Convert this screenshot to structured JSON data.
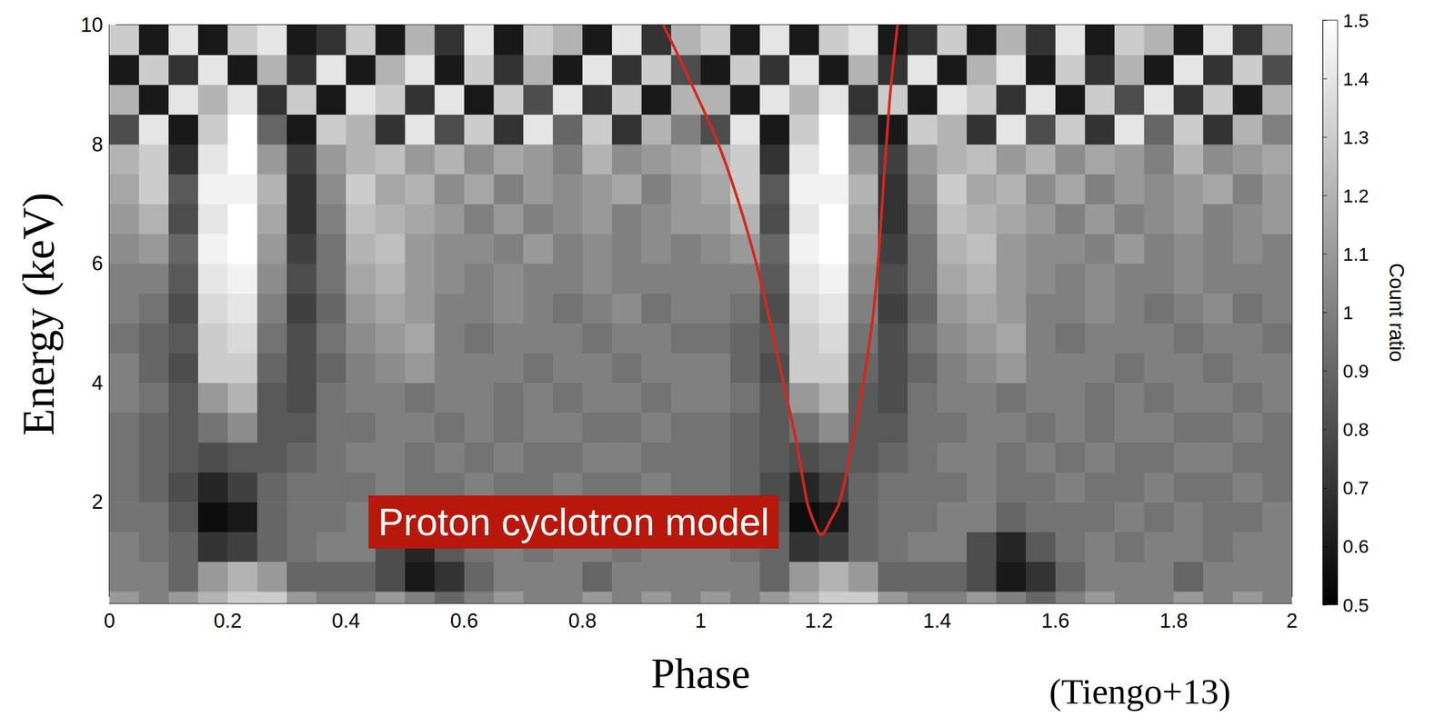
{
  "chart_data": {
    "type": "heatmap",
    "x_label": "Phase",
    "y_label": "Energy (keV)",
    "xlim": [
      0,
      2
    ],
    "xticks": [
      0,
      0.2,
      0.4,
      0.6,
      0.8,
      1,
      1.2,
      1.4,
      1.6,
      1.8,
      2
    ],
    "ylim": [
      0.3,
      10
    ],
    "yticks": [
      2,
      4,
      6,
      8,
      10
    ],
    "phase_bins": [
      0,
      0.05,
      0.1,
      0.15,
      0.2,
      0.25,
      0.3,
      0.35,
      0.4,
      0.45,
      0.5,
      0.55,
      0.6,
      0.65,
      0.7,
      0.75,
      0.8,
      0.85,
      0.9,
      0.95,
      1,
      1.05,
      1.1,
      1.15,
      1.2,
      1.25,
      1.3,
      1.35,
      1.4,
      1.45,
      1.5,
      1.55,
      1.6,
      1.65,
      1.7,
      1.75,
      1.8,
      1.85,
      1.9,
      1.95,
      2
    ],
    "energy_bins": [
      0,
      0.5,
      1,
      1.5,
      2,
      2.5,
      3,
      3.5,
      4,
      4.5,
      5,
      5.5,
      6,
      6.5,
      7,
      7.5,
      8,
      8.5,
      9,
      9.5,
      10
    ],
    "cells": [
      [
        1.1,
        1.0,
        1.1,
        1.2,
        1.3,
        1.3,
        1.1,
        1.0,
        1.0,
        1.1,
        1.0,
        0.9,
        1.0,
        1.1,
        1.0,
        1.0,
        1.1,
        1.0,
        1.1,
        1.0,
        1.1,
        1.0,
        1.1,
        1.2,
        1.3,
        1.3,
        1.1,
        1.0,
        1.0,
        1.1,
        1.0,
        0.9,
        1.0,
        1.1,
        1.0,
        1.0,
        1.1,
        1.0,
        1.1,
        1.0
      ],
      [
        1.0,
        1.0,
        0.9,
        1.1,
        1.2,
        1.1,
        0.9,
        0.9,
        0.9,
        0.8,
        0.6,
        0.7,
        0.9,
        1.0,
        1.0,
        1.0,
        0.9,
        1.0,
        1.0,
        1.0,
        1.0,
        1.0,
        0.9,
        1.1,
        1.2,
        1.1,
        0.9,
        0.9,
        0.9,
        0.8,
        0.6,
        0.7,
        0.9,
        1.0,
        1.0,
        1.0,
        0.9,
        1.0,
        1.0,
        1.0
      ],
      [
        1.0,
        0.95,
        0.9,
        0.7,
        0.75,
        0.9,
        0.95,
        1.0,
        1.0,
        0.8,
        0.65,
        0.85,
        0.95,
        1.0,
        0.95,
        1.0,
        1.0,
        0.95,
        1.0,
        1.0,
        1.0,
        0.95,
        0.9,
        0.7,
        0.75,
        0.9,
        0.95,
        1.0,
        1.0,
        0.8,
        0.65,
        0.85,
        0.95,
        1.0,
        0.95,
        1.0,
        1.0,
        0.95,
        1.0,
        1.0
      ],
      [
        0.95,
        0.95,
        0.85,
        0.55,
        0.6,
        0.9,
        0.95,
        0.95,
        1.0,
        1.0,
        0.9,
        0.95,
        0.95,
        0.95,
        1.0,
        0.95,
        1.0,
        0.95,
        0.95,
        1.0,
        0.95,
        0.95,
        0.85,
        0.55,
        0.6,
        0.9,
        0.95,
        0.95,
        1.0,
        1.0,
        0.9,
        0.95,
        0.95,
        0.95,
        1.0,
        0.95,
        1.0,
        0.95,
        0.95,
        1.0
      ],
      [
        0.95,
        0.9,
        0.8,
        0.65,
        0.75,
        0.9,
        0.95,
        0.95,
        0.95,
        1.0,
        0.95,
        0.95,
        1.0,
        0.95,
        0.95,
        1.0,
        0.95,
        0.95,
        1.0,
        0.95,
        0.95,
        0.9,
        0.8,
        0.65,
        0.75,
        0.9,
        0.95,
        0.95,
        0.95,
        1.0,
        0.95,
        0.95,
        1.0,
        0.95,
        0.95,
        1.0,
        0.95,
        0.95,
        1.0,
        0.95
      ],
      [
        0.95,
        0.9,
        0.85,
        0.8,
        0.85,
        0.85,
        0.9,
        0.95,
        1.0,
        1.0,
        0.95,
        1.0,
        0.95,
        1.0,
        0.95,
        0.95,
        1.0,
        1.0,
        0.95,
        0.95,
        0.95,
        0.9,
        0.85,
        0.8,
        0.85,
        0.85,
        0.9,
        0.95,
        1.0,
        1.0,
        0.95,
        1.0,
        0.95,
        1.0,
        0.95,
        0.95,
        1.0,
        1.0,
        0.95,
        0.95
      ],
      [
        0.95,
        0.9,
        0.85,
        0.95,
        1.05,
        0.85,
        0.85,
        0.95,
        0.95,
        1.0,
        1.0,
        0.95,
        1.0,
        0.95,
        1.0,
        1.0,
        0.95,
        0.95,
        1.0,
        0.95,
        0.95,
        0.9,
        0.85,
        0.95,
        1.05,
        0.85,
        0.85,
        0.95,
        0.95,
        1.0,
        1.0,
        0.95,
        1.0,
        0.95,
        1.0,
        1.0,
        0.95,
        0.95,
        1.0,
        0.95
      ],
      [
        1.0,
        0.95,
        0.85,
        1.1,
        1.2,
        0.85,
        0.8,
        0.95,
        1.0,
        1.0,
        0.95,
        1.0,
        1.0,
        0.95,
        1.0,
        0.95,
        1.0,
        1.0,
        0.95,
        1.0,
        1.0,
        0.95,
        0.85,
        1.1,
        1.2,
        0.85,
        0.8,
        0.95,
        1.0,
        1.0,
        0.95,
        1.0,
        1.0,
        0.95,
        1.0,
        0.95,
        1.0,
        1.0,
        0.95,
        1.0
      ],
      [
        1.0,
        0.9,
        0.8,
        1.3,
        1.3,
        0.9,
        0.8,
        0.9,
        1.0,
        1.05,
        1.1,
        1.0,
        1.0,
        1.0,
        0.95,
        1.0,
        1.0,
        0.95,
        1.0,
        1.0,
        1.0,
        0.9,
        0.8,
        1.3,
        1.3,
        0.9,
        0.8,
        0.9,
        1.0,
        1.05,
        1.1,
        1.0,
        1.0,
        1.0,
        0.95,
        1.0,
        1.0,
        0.95,
        1.0,
        1.0
      ],
      [
        0.95,
        0.9,
        0.85,
        1.3,
        1.35,
        0.95,
        0.8,
        0.95,
        1.05,
        1.1,
        1.15,
        1.0,
        0.95,
        1.0,
        1.0,
        1.0,
        0.95,
        1.0,
        1.0,
        0.95,
        0.95,
        0.9,
        0.85,
        1.3,
        1.35,
        0.95,
        0.8,
        0.95,
        1.05,
        1.1,
        1.15,
        1.0,
        0.95,
        1.0,
        1.0,
        1.0,
        0.95,
        1.0,
        1.0,
        0.95
      ],
      [
        1.0,
        0.95,
        0.8,
        1.35,
        1.4,
        1.0,
        0.75,
        0.9,
        1.1,
        1.15,
        1.1,
        1.0,
        1.0,
        1.05,
        1.0,
        0.95,
        1.0,
        1.05,
        0.95,
        1.0,
        1.0,
        0.95,
        0.8,
        1.35,
        1.4,
        1.0,
        0.75,
        0.9,
        1.1,
        1.15,
        1.1,
        1.0,
        1.0,
        1.05,
        1.0,
        0.95,
        1.0,
        1.05,
        0.95,
        1.0
      ],
      [
        1.0,
        1.0,
        0.85,
        1.4,
        1.45,
        1.05,
        0.8,
        0.95,
        1.15,
        1.2,
        1.1,
        1.05,
        1.0,
        1.05,
        1.0,
        1.0,
        1.05,
        1.0,
        1.0,
        1.0,
        1.0,
        1.0,
        0.85,
        1.4,
        1.45,
        1.05,
        0.8,
        0.95,
        1.15,
        1.2,
        1.1,
        1.05,
        1.0,
        1.05,
        1.0,
        1.0,
        1.05,
        1.0,
        1.0,
        1.0
      ],
      [
        1.05,
        1.1,
        0.9,
        1.45,
        1.5,
        1.1,
        0.75,
        0.95,
        1.2,
        1.25,
        1.1,
        1.05,
        1.05,
        1.0,
        1.1,
        1.0,
        1.05,
        1.0,
        1.05,
        1.0,
        1.05,
        1.1,
        0.9,
        1.45,
        1.5,
        1.1,
        0.75,
        0.95,
        1.2,
        1.25,
        1.1,
        1.05,
        1.05,
        1.0,
        1.1,
        1.0,
        1.05,
        1.0,
        1.05,
        1.0
      ],
      [
        1.1,
        1.2,
        0.8,
        1.4,
        1.5,
        1.15,
        0.7,
        1.0,
        1.25,
        1.2,
        1.15,
        1.1,
        1.0,
        1.1,
        1.0,
        1.05,
        1.1,
        1.0,
        1.05,
        1.1,
        1.1,
        1.2,
        0.8,
        1.4,
        1.5,
        1.15,
        0.7,
        1.0,
        1.25,
        1.2,
        1.15,
        1.1,
        1.0,
        1.1,
        1.0,
        1.05,
        1.1,
        1.0,
        1.05,
        1.1
      ],
      [
        1.15,
        1.3,
        0.85,
        1.45,
        1.45,
        1.2,
        0.7,
        1.05,
        1.3,
        1.15,
        1.2,
        1.05,
        1.15,
        1.0,
        1.1,
        1.05,
        1.1,
        1.15,
        1.0,
        1.1,
        1.15,
        1.3,
        0.85,
        1.45,
        1.45,
        1.2,
        0.7,
        1.05,
        1.3,
        1.15,
        1.2,
        1.05,
        1.15,
        1.0,
        1.1,
        1.05,
        1.1,
        1.15,
        1.0,
        1.1
      ],
      [
        1.2,
        1.3,
        0.7,
        1.4,
        1.5,
        1.1,
        0.75,
        1.1,
        1.2,
        1.25,
        1.1,
        1.2,
        1.05,
        1.15,
        1.1,
        1.0,
        1.2,
        1.05,
        1.1,
        1.15,
        1.2,
        1.3,
        0.7,
        1.4,
        1.5,
        1.1,
        0.75,
        1.1,
        1.2,
        1.25,
        1.1,
        1.2,
        1.05,
        1.15,
        1.1,
        1.0,
        1.2,
        1.05,
        1.1,
        1.15
      ],
      [
        0.8,
        1.4,
        0.6,
        1.3,
        1.5,
        0.9,
        0.6,
        1.3,
        1.2,
        0.7,
        1.4,
        0.8,
        1.3,
        0.7,
        1.4,
        0.9,
        1.3,
        0.7,
        1.2,
        1.0,
        0.8,
        1.4,
        0.6,
        1.3,
        1.5,
        0.9,
        0.6,
        1.3,
        1.2,
        0.7,
        1.4,
        0.8,
        1.3,
        0.7,
        1.4,
        0.9,
        1.3,
        0.7,
        1.2,
        1.0
      ],
      [
        1.2,
        0.6,
        1.4,
        1.2,
        1.4,
        0.7,
        1.3,
        0.6,
        1.4,
        1.3,
        0.7,
        1.4,
        0.6,
        1.3,
        0.8,
        1.4,
        0.7,
        1.3,
        0.6,
        1.2,
        1.2,
        0.6,
        1.4,
        1.2,
        1.4,
        0.7,
        1.3,
        0.6,
        1.4,
        1.3,
        0.7,
        1.4,
        0.6,
        1.3,
        0.8,
        1.4,
        0.7,
        1.3,
        0.6,
        1.2
      ],
      [
        0.6,
        1.3,
        0.7,
        1.4,
        0.6,
        1.2,
        0.7,
        1.4,
        0.6,
        1.2,
        1.4,
        0.6,
        1.3,
        0.7,
        1.2,
        0.6,
        1.4,
        0.7,
        1.3,
        0.8,
        0.6,
        1.3,
        0.7,
        1.4,
        0.6,
        1.2,
        0.7,
        1.4,
        0.6,
        1.2,
        1.4,
        0.6,
        1.3,
        0.7,
        1.2,
        0.6,
        1.4,
        0.7,
        1.3,
        0.8
      ],
      [
        1.3,
        0.6,
        1.4,
        0.6,
        1.3,
        1.4,
        0.6,
        0.7,
        1.3,
        0.6,
        1.2,
        0.7,
        1.4,
        0.6,
        1.3,
        1.2,
        0.6,
        1.4,
        0.7,
        1.2,
        1.3,
        0.6,
        1.4,
        0.6,
        1.3,
        1.4,
        0.6,
        0.7,
        1.3,
        0.6,
        1.2,
        0.7,
        1.4,
        0.6,
        1.3,
        1.2,
        0.6,
        1.4,
        0.7,
        1.2
      ]
    ],
    "colorbar": {
      "label": "Count ratio",
      "range": [
        0.5,
        1.5
      ],
      "ticks": [
        0.5,
        0.6,
        0.7,
        0.8,
        0.9,
        1,
        1.1,
        1.2,
        1.3,
        1.4,
        1.5
      ]
    },
    "model_curve": {
      "name": "Proton cyclotron model",
      "color": "#d7261e",
      "x": [
        0.937,
        0.985,
        1.03,
        1.065,
        1.094,
        1.118,
        1.14,
        1.162,
        1.18,
        1.19,
        1.204,
        1.22,
        1.235,
        1.257,
        1.275,
        1.29,
        1.3,
        1.307,
        1.314,
        1.322,
        1.333
      ],
      "y": [
        10,
        9,
        8,
        7,
        6,
        5,
        4,
        3,
        2,
        1.7,
        1.45,
        1.7,
        2,
        3,
        4,
        5,
        6,
        7,
        8,
        9,
        10
      ]
    },
    "annotations": [
      {
        "text": "(Tiengo+13)"
      }
    ]
  }
}
